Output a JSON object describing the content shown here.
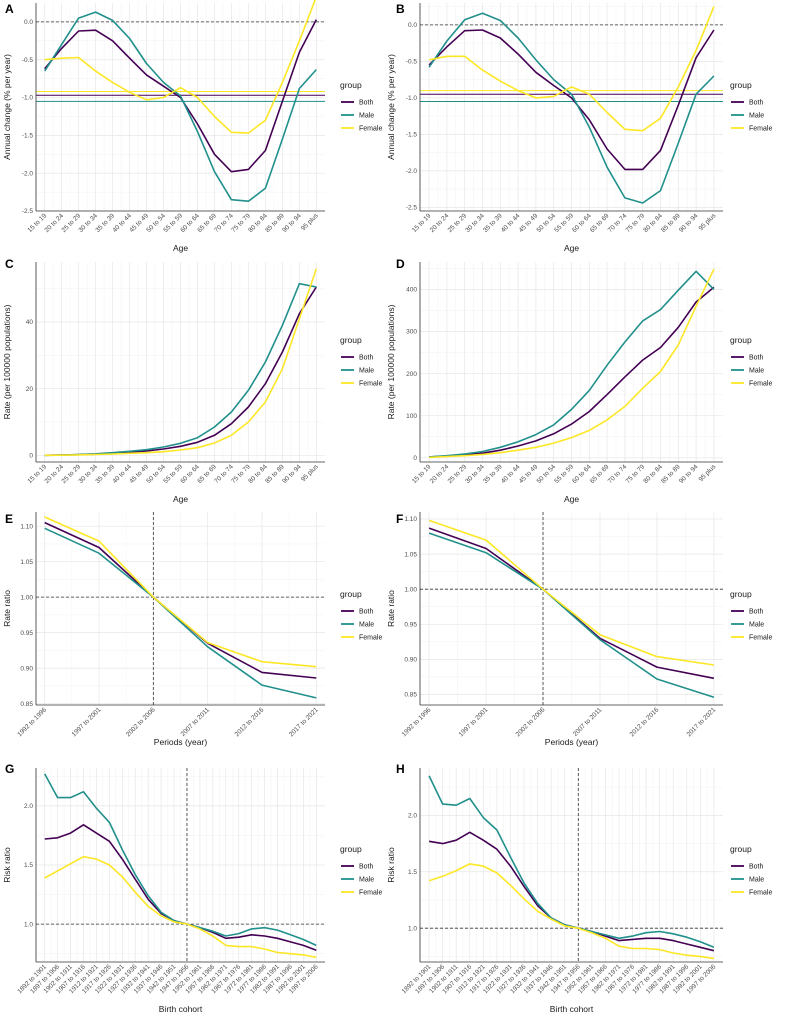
{
  "legend": {
    "title": "group",
    "entries": [
      {
        "name": "Both",
        "color": "#440154"
      },
      {
        "name": "Male",
        "color": "#21908C"
      },
      {
        "name": "Female",
        "color": "#FDE725"
      }
    ]
  },
  "chart_data": [
    {
      "panel": "A",
      "type": "line",
      "xlabel": "Age",
      "ylabel": "Annual change (% per year)",
      "categories": [
        "15 to 19",
        "20 to 24",
        "25 to 29",
        "30 to 34",
        "35 to 39",
        "40 to 44",
        "45 to 49",
        "50 to 54",
        "55 to 59",
        "60 to 64",
        "65 to 69",
        "70 to 74",
        "75 to 79",
        "80 to 84",
        "85 to 89",
        "90 to 94",
        "95 plus"
      ],
      "ylim": [
        -2.5,
        0.25
      ],
      "yticks": [
        -2.5,
        -2.0,
        -1.5,
        -1.0,
        -0.5,
        0.0
      ],
      "ytick_labels": [
        "-2.5",
        "-2.0",
        "-1.5",
        "-1.0",
        "-0.5",
        "0.0"
      ],
      "series": [
        {
          "name": "Both",
          "values": [
            -0.62,
            -0.35,
            -0.12,
            -0.11,
            -0.25,
            -0.48,
            -0.7,
            -0.85,
            -1.0,
            -1.35,
            -1.75,
            -1.98,
            -1.95,
            -1.7,
            -1.05,
            -0.4,
            0.03
          ]
        },
        {
          "name": "Male",
          "values": [
            -0.65,
            -0.3,
            0.05,
            0.13,
            0.02,
            -0.22,
            -0.55,
            -0.8,
            -0.98,
            -1.45,
            -1.98,
            -2.35,
            -2.37,
            -2.2,
            -1.55,
            -0.88,
            -0.63
          ]
        },
        {
          "name": "Female",
          "values": [
            -0.5,
            -0.48,
            -0.47,
            -0.65,
            -0.8,
            -0.93,
            -1.03,
            -1.0,
            -0.87,
            -1.0,
            -1.25,
            -1.46,
            -1.47,
            -1.3,
            -0.8,
            -0.25,
            0.33
          ]
        }
      ],
      "hlines": [
        {
          "y": 0,
          "style": "dashed",
          "color": "#333333"
        },
        {
          "y": -0.92,
          "style": "solid",
          "color": "#FDE725"
        },
        {
          "y": -0.97,
          "style": "solid",
          "color": "#440154"
        },
        {
          "y": -1.05,
          "style": "solid",
          "color": "#21908C"
        }
      ]
    },
    {
      "panel": "B",
      "type": "line",
      "xlabel": "Age",
      "ylabel": "Annual change (% per year)",
      "categories": [
        "15 to 19",
        "20 to 24",
        "25 to 29",
        "30 to 34",
        "35 to 39",
        "40 to 44",
        "45 to 49",
        "50 to 54",
        "55 to 59",
        "60 to 64",
        "65 to 69",
        "70 to 74",
        "75 to 79",
        "80 to 84",
        "85 to 89",
        "90 to 94",
        "95 plus"
      ],
      "ylim": [
        -2.55,
        0.3
      ],
      "yticks": [
        -2.5,
        -2.0,
        -1.5,
        -1.0,
        -0.5,
        0.0
      ],
      "ytick_labels": [
        "-2.5",
        "-2.0",
        "-1.5",
        "-1.0",
        "-0.5",
        "0.0"
      ],
      "series": [
        {
          "name": "Both",
          "values": [
            -0.55,
            -0.3,
            -0.08,
            -0.07,
            -0.18,
            -0.4,
            -0.65,
            -0.83,
            -1.0,
            -1.3,
            -1.7,
            -1.98,
            -1.98,
            -1.72,
            -1.1,
            -0.45,
            -0.07
          ]
        },
        {
          "name": "Male",
          "values": [
            -0.58,
            -0.22,
            0.07,
            0.16,
            0.06,
            -0.18,
            -0.48,
            -0.75,
            -0.95,
            -1.4,
            -1.95,
            -2.37,
            -2.44,
            -2.27,
            -1.62,
            -0.95,
            -0.7
          ]
        },
        {
          "name": "Female",
          "values": [
            -0.48,
            -0.43,
            -0.43,
            -0.62,
            -0.77,
            -0.9,
            -1.0,
            -0.98,
            -0.85,
            -0.95,
            -1.2,
            -1.43,
            -1.45,
            -1.28,
            -0.85,
            -0.35,
            0.25
          ]
        }
      ],
      "hlines": [
        {
          "y": 0,
          "style": "dashed",
          "color": "#333333"
        },
        {
          "y": -0.9,
          "style": "solid",
          "color": "#FDE725"
        },
        {
          "y": -0.95,
          "style": "solid",
          "color": "#440154"
        },
        {
          "y": -1.05,
          "style": "solid",
          "color": "#21908C"
        }
      ]
    },
    {
      "panel": "C",
      "type": "line",
      "xlabel": "Age",
      "ylabel": "Rate (per 100000 populations)",
      "categories": [
        "15 to 19",
        "20 to 24",
        "25 to 29",
        "30 to 34",
        "35 to 39",
        "40 to 44",
        "45 to 49",
        "50 to 54",
        "55 to 59",
        "60 to 64",
        "65 to 69",
        "70 to 74",
        "75 to 79",
        "80 to 84",
        "85 to 89",
        "90 to 94",
        "95 plus"
      ],
      "ylim": [
        -2,
        58
      ],
      "yticks": [
        0,
        20,
        40
      ],
      "ytick_labels": [
        "0",
        "20",
        "40"
      ],
      "series": [
        {
          "name": "Both",
          "values": [
            0.02,
            0.08,
            0.2,
            0.35,
            0.6,
            0.9,
            1.3,
            1.9,
            2.7,
            3.9,
            6.0,
            9.5,
            14.5,
            21.5,
            31.0,
            42.5,
            50.5
          ]
        },
        {
          "name": "Male",
          "values": [
            0.02,
            0.1,
            0.25,
            0.45,
            0.8,
            1.2,
            1.7,
            2.5,
            3.6,
            5.3,
            8.5,
            13.0,
            19.5,
            28.0,
            39.0,
            51.5,
            50.5
          ]
        },
        {
          "name": "Female",
          "values": [
            0.01,
            0.05,
            0.12,
            0.25,
            0.4,
            0.6,
            0.8,
            1.1,
            1.6,
            2.3,
            3.7,
            6.0,
            10.0,
            16.0,
            26.0,
            41.0,
            56.0
          ]
        }
      ],
      "hlines": []
    },
    {
      "panel": "D",
      "type": "line",
      "xlabel": "Age",
      "ylabel": "Rate (per 100000 populations)",
      "categories": [
        "15 to 19",
        "20 to 24",
        "25 to 29",
        "30 to 34",
        "35 to 39",
        "40 to 44",
        "45 to 49",
        "50 to 54",
        "55 to 59",
        "60 to 64",
        "65 to 69",
        "70 to 74",
        "75 to 79",
        "80 to 84",
        "85 to 89",
        "90 to 94",
        "95 plus"
      ],
      "ylim": [
        -10,
        465
      ],
      "yticks": [
        0,
        100,
        200,
        300,
        400
      ],
      "ytick_labels": [
        "0",
        "100",
        "200",
        "300",
        "400"
      ],
      "series": [
        {
          "name": "Both",
          "values": [
            2,
            4,
            7,
            11,
            18,
            28,
            40,
            57,
            80,
            110,
            150,
            192,
            232,
            262,
            310,
            370,
            405
          ]
        },
        {
          "name": "Male",
          "values": [
            2,
            5,
            9,
            15,
            25,
            38,
            55,
            78,
            115,
            160,
            220,
            275,
            325,
            352,
            398,
            443,
            400
          ]
        },
        {
          "name": "Female",
          "values": [
            1,
            3,
            5,
            8,
            12,
            18,
            25,
            35,
            48,
            65,
            90,
            122,
            165,
            205,
            268,
            360,
            448
          ]
        }
      ],
      "hlines": []
    },
    {
      "panel": "E",
      "type": "line",
      "xlabel": "Periods (year)",
      "ylabel": "Rate ratio",
      "categories": [
        "1992 to 1996",
        "1997 to 2001",
        "2002 to 2006",
        "2007 to 2011",
        "2012 to 2016",
        "2017 to 2021"
      ],
      "ylim": [
        0.848,
        1.12
      ],
      "yticks": [
        0.85,
        0.9,
        0.95,
        1.0,
        1.05,
        1.1
      ],
      "ytick_labels": [
        "0.85",
        "0.90",
        "0.95",
        "1.00",
        "1.05",
        "1.10"
      ],
      "series": [
        {
          "name": "Both",
          "values": [
            1.105,
            1.07,
            1.0,
            0.935,
            0.894,
            0.886
          ]
        },
        {
          "name": "Male",
          "values": [
            1.097,
            1.062,
            1.0,
            0.93,
            0.876,
            0.858
          ]
        },
        {
          "name": "Female",
          "values": [
            1.113,
            1.079,
            1.0,
            0.936,
            0.909,
            0.902
          ]
        }
      ],
      "hlines": [
        {
          "y": 1.0,
          "style": "dashed",
          "color": "#333333"
        }
      ],
      "vline_category": "2002 to 2006"
    },
    {
      "panel": "F",
      "type": "line",
      "xlabel": "Periods (year)",
      "ylabel": "Rate ratio",
      "categories": [
        "1992 to 1996",
        "1997 to 2001",
        "2002 to 2006",
        "2007 to 2011",
        "2012 to 2016",
        "2017 to 2021"
      ],
      "ylim": [
        0.835,
        1.11
      ],
      "yticks": [
        0.85,
        0.9,
        0.95,
        1.0,
        1.05,
        1.1
      ],
      "ytick_labels": [
        "0.85",
        "0.90",
        "0.95",
        "1.00",
        "1.05",
        "1.10"
      ],
      "series": [
        {
          "name": "Both",
          "values": [
            1.087,
            1.058,
            1.0,
            0.93,
            0.889,
            0.873
          ]
        },
        {
          "name": "Male",
          "values": [
            1.08,
            1.052,
            1.0,
            0.928,
            0.872,
            0.846
          ]
        },
        {
          "name": "Female",
          "values": [
            1.098,
            1.07,
            1.0,
            0.935,
            0.904,
            0.892
          ]
        }
      ],
      "hlines": [
        {
          "y": 1.0,
          "style": "dashed",
          "color": "#333333"
        }
      ],
      "vline_category": "2002 to 2006"
    },
    {
      "panel": "G",
      "type": "line",
      "xlabel": "Birth cohort",
      "ylabel": "Risk ratio",
      "categories": [
        "1892 to 1901",
        "1897 to 1906",
        "1902 to 1911",
        "1907 to 1916",
        "1912 to 1921",
        "1917 to 1926",
        "1922 to 1931",
        "1927 to 1936",
        "1932 to 1941",
        "1937 to 1946",
        "1942 to 1951",
        "1947 to 1956",
        "1952 to 1961",
        "1957 to 1966",
        "1962 to 1971",
        "1967 to 1976",
        "1972 to 1981",
        "1977 to 1986",
        "1982 to 1991",
        "1987 to 1996",
        "1992 to 2001",
        "1997 to 2006"
      ],
      "ylim": [
        0.68,
        2.32
      ],
      "yticks": [
        1.0,
        1.5,
        2.0
      ],
      "ytick_labels": [
        "1.0",
        "1.5",
        "2.0"
      ],
      "series": [
        {
          "name": "Both",
          "values": [
            1.72,
            1.73,
            1.77,
            1.84,
            1.77,
            1.7,
            1.55,
            1.38,
            1.21,
            1.09,
            1.03,
            1.0,
            0.97,
            0.93,
            0.88,
            0.89,
            0.91,
            0.9,
            0.88,
            0.85,
            0.82,
            0.78
          ]
        },
        {
          "name": "Male",
          "values": [
            2.27,
            2.07,
            2.07,
            2.12,
            1.98,
            1.86,
            1.63,
            1.42,
            1.24,
            1.1,
            1.03,
            1.0,
            0.97,
            0.94,
            0.9,
            0.92,
            0.96,
            0.97,
            0.95,
            0.91,
            0.87,
            0.82
          ]
        },
        {
          "name": "Female",
          "values": [
            1.39,
            1.45,
            1.51,
            1.57,
            1.55,
            1.5,
            1.4,
            1.27,
            1.15,
            1.07,
            1.02,
            1.0,
            0.96,
            0.9,
            0.82,
            0.81,
            0.81,
            0.79,
            0.76,
            0.75,
            0.74,
            0.72
          ]
        }
      ],
      "hlines": [
        {
          "y": 1.0,
          "style": "dashed",
          "color": "#333333"
        }
      ],
      "vline_category": "1947 to 1956"
    },
    {
      "panel": "H",
      "type": "line",
      "xlabel": "Birth cohort",
      "ylabel": "Risk ratio",
      "categories": [
        "1892 to 1901",
        "1897 to 1906",
        "1902 to 1911",
        "1907 to 1916",
        "1912 to 1921",
        "1917 to 1926",
        "1922 to 1931",
        "1927 to 1936",
        "1932 to 1941",
        "1937 to 1946",
        "1942 to 1951",
        "1947 to 1956",
        "1952 to 1961",
        "1957 to 1966",
        "1962 to 1971",
        "1967 to 1976",
        "1972 to 1981",
        "1977 to 1986",
        "1982 to 1991",
        "1987 to 1996",
        "1992 to 2001",
        "1997 to 2006"
      ],
      "ylim": [
        0.7,
        2.42
      ],
      "yticks": [
        1.0,
        1.5,
        2.0
      ],
      "ytick_labels": [
        "1.0",
        "1.5",
        "2.0"
      ],
      "series": [
        {
          "name": "Both",
          "values": [
            1.77,
            1.75,
            1.78,
            1.85,
            1.78,
            1.7,
            1.55,
            1.37,
            1.2,
            1.09,
            1.03,
            1.0,
            0.97,
            0.93,
            0.89,
            0.9,
            0.91,
            0.91,
            0.89,
            0.86,
            0.83,
            0.8
          ]
        },
        {
          "name": "Male",
          "values": [
            2.35,
            2.1,
            2.09,
            2.15,
            1.98,
            1.87,
            1.63,
            1.4,
            1.22,
            1.09,
            1.03,
            1.0,
            0.97,
            0.94,
            0.91,
            0.93,
            0.96,
            0.97,
            0.95,
            0.92,
            0.88,
            0.83
          ]
        },
        {
          "name": "Female",
          "values": [
            1.42,
            1.46,
            1.51,
            1.57,
            1.55,
            1.49,
            1.38,
            1.26,
            1.15,
            1.08,
            1.02,
            1.0,
            0.96,
            0.91,
            0.84,
            0.82,
            0.82,
            0.81,
            0.78,
            0.76,
            0.75,
            0.73
          ]
        }
      ],
      "hlines": [
        {
          "y": 1.0,
          "style": "dashed",
          "color": "#333333"
        }
      ],
      "vline_category": "1947 to 1956"
    }
  ]
}
